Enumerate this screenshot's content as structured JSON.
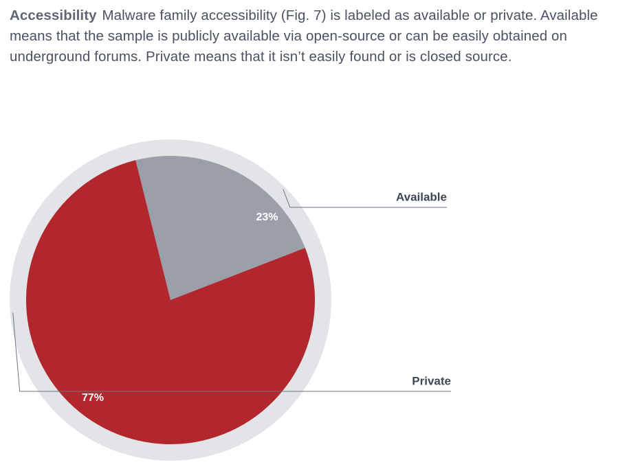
{
  "intro": {
    "lead": "Accessibility",
    "body": "Malware family accessibility (Fig. 7) is labeled as available or private. Available means that the sample is publicly available via open-source or can be easily obtained on underground forums. Private means that it isn’t easily found or is closed source."
  },
  "chart_data": {
    "type": "pie",
    "title": "",
    "categories": [
      "Available",
      "Private"
    ],
    "values": [
      23,
      77
    ],
    "data_labels": [
      "23%",
      "77%"
    ],
    "colors": {
      "Available": "#9a9fa9",
      "Private": "#b2262d",
      "outer_ring": "#e2e4e7",
      "leader_line": "#6b7280"
    },
    "legend": "right"
  }
}
